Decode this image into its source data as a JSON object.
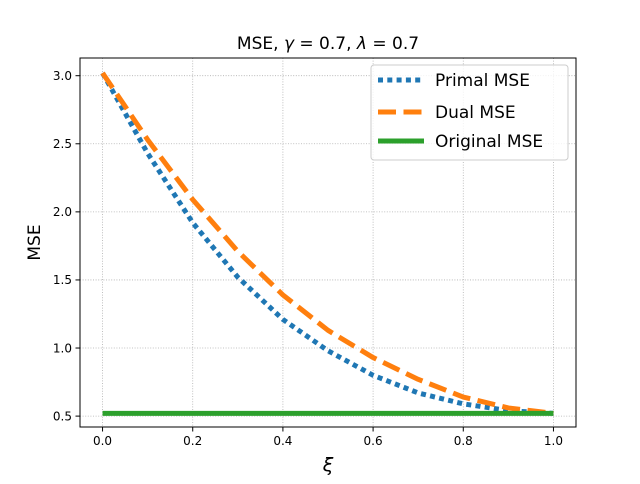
{
  "chart_data": {
    "type": "line",
    "title": {
      "prefix": "MSE, ",
      "gamma_symbol": "γ",
      "gamma_value": " = 0.7, ",
      "lambda_symbol": "λ",
      "lambda_value": " = 0.7"
    },
    "xlabel": "ξ",
    "ylabel": "MSE",
    "xlim": [
      -0.05,
      1.05
    ],
    "ylim": [
      0.42,
      3.13
    ],
    "xticks": [
      0.0,
      0.2,
      0.4,
      0.6,
      0.8,
      1.0
    ],
    "xtick_labels": [
      "0.0",
      "0.2",
      "0.4",
      "0.6",
      "0.8",
      "1.0"
    ],
    "yticks": [
      0.5,
      1.0,
      1.5,
      2.0,
      2.5,
      3.0
    ],
    "ytick_labels": [
      "0.5",
      "1.0",
      "1.5",
      "2.0",
      "2.5",
      "3.0"
    ],
    "grid": true,
    "legend_position": "upper right",
    "series": [
      {
        "name": "Primal MSE",
        "style": "dotted",
        "color": "#1f77b4",
        "x": [
          0.0,
          0.1,
          0.2,
          0.3,
          0.4,
          0.5,
          0.6,
          0.7,
          0.8,
          0.9,
          1.0
        ],
        "y": [
          3.02,
          2.43,
          1.92,
          1.52,
          1.21,
          0.98,
          0.8,
          0.67,
          0.59,
          0.54,
          0.52
        ]
      },
      {
        "name": "Dual MSE",
        "style": "dashed",
        "color": "#ff7f0e",
        "x": [
          0.0,
          0.1,
          0.2,
          0.3,
          0.4,
          0.5,
          0.6,
          0.7,
          0.8,
          0.9,
          1.0
        ],
        "y": [
          3.02,
          2.53,
          2.09,
          1.71,
          1.39,
          1.13,
          0.93,
          0.77,
          0.64,
          0.56,
          0.52
        ]
      },
      {
        "name": "Original MSE",
        "style": "solid",
        "color": "#2ca02c",
        "x": [
          0.0,
          1.0
        ],
        "y": [
          0.52,
          0.52
        ]
      }
    ]
  }
}
